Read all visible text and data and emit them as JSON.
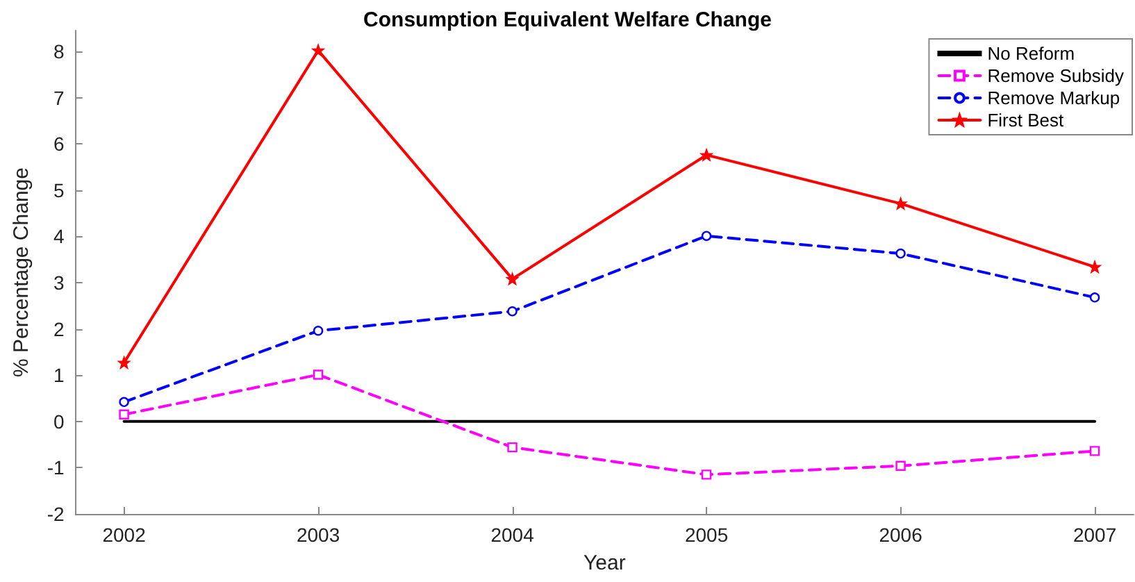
{
  "chart_data": {
    "type": "line",
    "title": "Consumption Equivalent Welfare Change",
    "xlabel": "Year",
    "ylabel": "% Percentage Change",
    "x": [
      2002,
      2003,
      2004,
      2005,
      2006,
      2007
    ],
    "series": [
      {
        "name": "No Reform",
        "color": "#000000",
        "values": [
          0,
          0,
          0,
          0,
          0,
          0
        ],
        "marker": "none",
        "line_style": "solid"
      },
      {
        "name": "Remove Subsidy",
        "color": "#ff00ff",
        "values": [
          0.15,
          1.01,
          -0.56,
          -1.15,
          -0.96,
          -0.64
        ],
        "marker": "square",
        "line_style": "dashed"
      },
      {
        "name": "Remove Markup",
        "color": "#0000ff",
        "values": [
          0.42,
          1.96,
          2.38,
          4.01,
          3.63,
          2.68
        ],
        "marker": "circle",
        "line_style": "dashed"
      },
      {
        "name": "First Best",
        "color": "#ff0000",
        "values": [
          1.27,
          8.02,
          3.08,
          5.76,
          4.71,
          3.34
        ],
        "marker": "star",
        "line_style": "solid"
      }
    ],
    "xlim": [
      2001.75,
      2007.2
    ],
    "xticks": [
      2002,
      2003,
      2004,
      2005,
      2006,
      2007
    ],
    "ylim": [
      -2,
      8.45
    ],
    "yticks": [
      -2,
      -1,
      0,
      1,
      2,
      3,
      4,
      5,
      6,
      7,
      8
    ],
    "grid": false,
    "legend": "top right"
  }
}
